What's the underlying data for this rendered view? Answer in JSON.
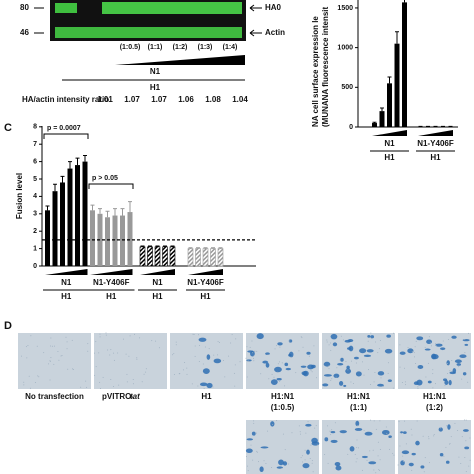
{
  "blot": {
    "mw_markers": [
      "80",
      "46"
    ],
    "band_labels": [
      "HA0",
      "Actin"
    ],
    "ratios": [
      "(1:0.5)",
      "(1:1)",
      "(1:2)",
      "(1:3)",
      "(1:4)"
    ],
    "wedge_label": "N1",
    "group_label": "H1",
    "intensity_label": "HA/actin intensity ratio",
    "intensity_values": [
      1.01,
      1.07,
      1.07,
      1.06,
      1.08,
      1.04
    ]
  },
  "chart_b": {
    "type": "bar",
    "ylabel": [
      "NA cell surface expression le",
      "(MUNANA fluorescence intensit"
    ],
    "ylim": [
      0,
      1600
    ],
    "yticks": [
      0,
      500,
      1000,
      1500
    ],
    "groups": [
      {
        "name": "N1",
        "color": "#000000",
        "values": [
          50,
          200,
          550,
          1050,
          1570
        ],
        "errors": [
          10,
          40,
          80,
          150,
          230
        ]
      },
      {
        "name": "N1-Y406F",
        "color": "#000000",
        "values": [
          6,
          6,
          6,
          6,
          6
        ],
        "errors": [
          2,
          2,
          2,
          2,
          2
        ]
      }
    ],
    "group_labels": [
      "H1",
      "H1"
    ]
  },
  "chart_c": {
    "type": "bar",
    "panel": "C",
    "ylabel": "Fusion level",
    "ylim": [
      0,
      8
    ],
    "yticks": [
      0,
      1,
      2,
      3,
      4,
      5,
      6,
      7,
      8
    ],
    "threshold": 1.5,
    "groups": [
      {
        "name": "N1",
        "color": "#000000",
        "hatch": false,
        "values": [
          3.2,
          4.3,
          4.8,
          5.6,
          5.8,
          6.0
        ],
        "errors": [
          0.25,
          0.4,
          0.35,
          0.4,
          0.4,
          0.35
        ]
      },
      {
        "name": "N1-Y406F",
        "color": "#999999",
        "hatch": false,
        "values": [
          3.2,
          3.0,
          2.8,
          2.9,
          2.9,
          3.1
        ],
        "errors": [
          0.3,
          0.3,
          0.35,
          0.4,
          0.4,
          0.6
        ]
      },
      {
        "name": "N1",
        "color": "#000000",
        "hatch": true,
        "values": [
          1.1,
          1.1,
          1.1,
          1.1,
          1.1
        ],
        "errors": [
          0.05,
          0.05,
          0.05,
          0.05,
          0.05
        ]
      },
      {
        "name": "N1-Y406F",
        "color": "#999999",
        "hatch": true,
        "values": [
          1.0,
          1.0,
          1.0,
          1.0,
          1.0
        ],
        "errors": [
          0.05,
          0.05,
          0.05,
          0.05,
          0.05
        ]
      }
    ],
    "group_labels": [
      "H1",
      "H1",
      "H1",
      "H1"
    ],
    "pvalues": [
      "p = 0.0007",
      "p > 0.05"
    ]
  },
  "panel_d": {
    "panel": "D",
    "images": [
      {
        "label": [
          "No transfection"
        ]
      },
      {
        "label": [
          "pVITRO-",
          "tat"
        ]
      },
      {
        "label": [
          "H1"
        ]
      },
      {
        "label": [
          "H1:N1",
          "(1:0.5)"
        ]
      },
      {
        "label": [
          "H1:N1",
          "(1:1)"
        ]
      },
      {
        "label": [
          "H1:N1",
          "(1:2)"
        ]
      }
    ]
  }
}
